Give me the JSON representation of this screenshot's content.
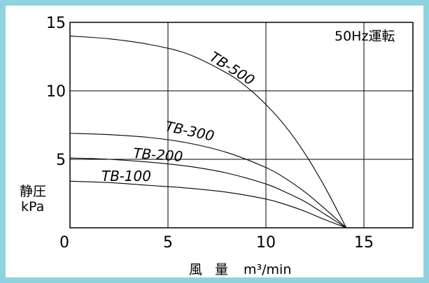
{
  "chart_data": {
    "type": "line",
    "title": "",
    "annotation": "50Hz運転",
    "xlabel": "風 量",
    "xunit": "m³/min",
    "ylabel": "静圧",
    "yunit": "kPa",
    "xlim": [
      0,
      17.5
    ],
    "ylim": [
      0,
      15
    ],
    "xticks": [
      0,
      5,
      10,
      15
    ],
    "yticks": [
      5,
      10,
      15
    ],
    "grid": true,
    "series": [
      {
        "name": "TB-500",
        "x": [
          0,
          2,
          4,
          6,
          8,
          9,
          10,
          11,
          12,
          13,
          14.1
        ],
        "y": [
          14,
          13.8,
          13.4,
          12.7,
          11.3,
          10.3,
          9.0,
          7.4,
          5.4,
          3.0,
          0
        ]
      },
      {
        "name": "TB-300",
        "x": [
          0,
          2,
          4,
          6,
          8,
          10,
          11,
          12,
          13,
          14.1
        ],
        "y": [
          6.9,
          6.8,
          6.6,
          6.2,
          5.5,
          4.4,
          3.6,
          2.6,
          1.4,
          0
        ]
      },
      {
        "name": "TB-200",
        "x": [
          0,
          2,
          4,
          6,
          8,
          10,
          11,
          12,
          13,
          14.1
        ],
        "y": [
          5.1,
          5.0,
          4.8,
          4.5,
          4.0,
          3.2,
          2.6,
          1.9,
          1.0,
          0
        ]
      },
      {
        "name": "TB-100",
        "x": [
          0,
          2,
          4,
          6,
          8,
          10,
          11,
          12,
          13,
          14.1
        ],
        "y": [
          3.4,
          3.3,
          3.1,
          2.9,
          2.6,
          2.1,
          1.7,
          1.2,
          0.6,
          0
        ]
      }
    ]
  }
}
